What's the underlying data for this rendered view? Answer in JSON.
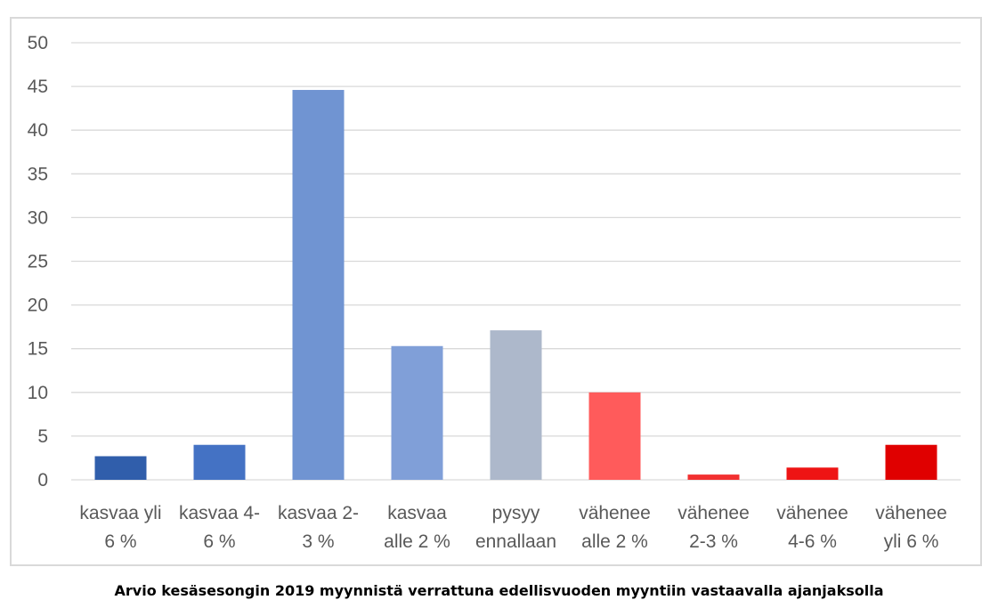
{
  "caption": "Arvio kesäsesongin 2019 myynnistä verrattuna edellisvuoden myyntiin vastaavalla ajanjaksolla",
  "chart_data": {
    "type": "bar",
    "title": "",
    "xlabel": "",
    "ylabel": "",
    "ylim": [
      0,
      50
    ],
    "yticks": [
      0,
      5,
      10,
      15,
      20,
      25,
      30,
      35,
      40,
      45,
      50
    ],
    "grid": true,
    "legend": "none",
    "categories": [
      [
        "kasvaa yli",
        "6 %"
      ],
      [
        "kasvaa 4-",
        "6 %"
      ],
      [
        "kasvaa 2-",
        "3 %"
      ],
      [
        "kasvaa",
        "alle 2 %"
      ],
      [
        "pysyy",
        "ennallaan"
      ],
      [
        "vähenee",
        "alle 2 %"
      ],
      [
        "vähenee",
        "2-3 %"
      ],
      [
        "vähenee",
        "4-6 %"
      ],
      [
        "vähenee",
        "yli 6 %"
      ]
    ],
    "values": [
      2.7,
      4.0,
      44.6,
      15.3,
      17.1,
      10.0,
      0.6,
      1.4,
      4.0
    ],
    "colors": [
      "#305eab",
      "#4472c4",
      "#7094d2",
      "#809fd8",
      "#adb8cb",
      "#ff5b5b",
      "#f23131",
      "#ee1414",
      "#e00000"
    ]
  }
}
